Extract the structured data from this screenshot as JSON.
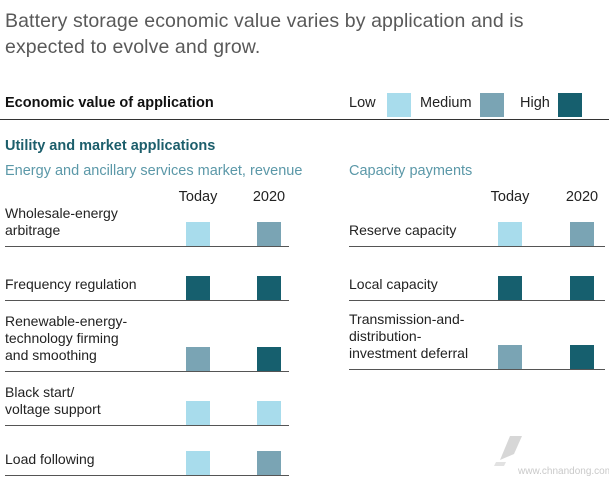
{
  "title": "Battery storage economic value varies by application and is expected to evolve and grow.",
  "legend": {
    "title": "Economic value of application",
    "items": [
      {
        "label": "Low",
        "color": "#a8dcec"
      },
      {
        "label": "Medium",
        "color": "#7aa4b4"
      },
      {
        "label": "High",
        "color": "#165f6e"
      }
    ]
  },
  "section_title": "Utility and market applications",
  "left_group": {
    "title": "Energy and ancillary services market, revenue",
    "col_today": "Today",
    "col_2020": "2020"
  },
  "right_group": {
    "title": "Capacity payments",
    "col_today": "Today",
    "col_2020": "2020"
  },
  "watermark": "www.chnandong.com",
  "chart_data": {
    "type": "table",
    "title": "Battery storage economic value varies by application and is expected to evolve and grow.",
    "legend": [
      "Low",
      "Medium",
      "High"
    ],
    "columns": [
      "Today",
      "2020"
    ],
    "groups": [
      {
        "name": "Energy and ancillary services market, revenue",
        "rows": [
          {
            "label": "Wholesale-energy arbitrage",
            "lines": [
              "Wholesale-energy",
              "arbitrage"
            ],
            "today": "Low",
            "y2020": "Medium"
          },
          {
            "label": "Frequency regulation",
            "lines": [
              "Frequency regulation"
            ],
            "today": "High",
            "y2020": "High"
          },
          {
            "label": "Renewable-energy-technology firming and smoothing",
            "lines": [
              "Renewable-energy-",
              "technology firming",
              "and smoothing"
            ],
            "today": "Medium",
            "y2020": "High"
          },
          {
            "label": "Black start/ voltage support",
            "lines": [
              "Black start/",
              "voltage support"
            ],
            "today": "Low",
            "y2020": "Low"
          },
          {
            "label": "Load following",
            "lines": [
              "Load following"
            ],
            "today": "Low",
            "y2020": "Medium"
          }
        ]
      },
      {
        "name": "Capacity payments",
        "rows": [
          {
            "label": "Reserve capacity",
            "lines": [
              "Reserve capacity"
            ],
            "today": "Low",
            "y2020": "Medium"
          },
          {
            "label": "Local capacity",
            "lines": [
              "Local capacity"
            ],
            "today": "High",
            "y2020": "High"
          },
          {
            "label": "Transmission-and-distribution-investment deferral",
            "lines": [
              "Transmission-and-",
              "distribution-",
              "investment deferral"
            ],
            "today": "Medium",
            "y2020": "High"
          }
        ]
      }
    ]
  }
}
